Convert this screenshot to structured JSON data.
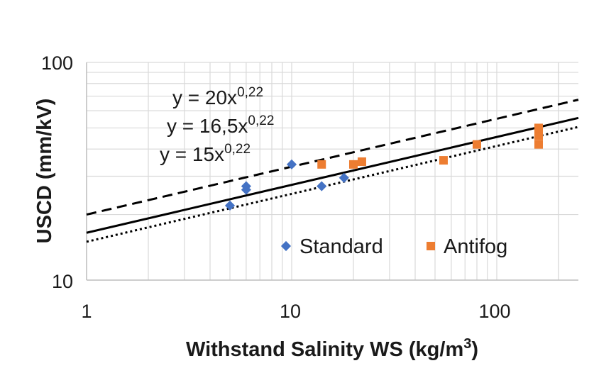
{
  "chart_data": {
    "type": "scatter",
    "xlabel": "Withstand Salinity WS (kg/m",
    "xlabel_sup": "3",
    "xlabel_end": ")",
    "ylabel": "USCD (mm/kV)",
    "xscale": "log",
    "yscale": "log",
    "xlim": [
      1,
      250
    ],
    "ylim": [
      10,
      100
    ],
    "x_ticks": [
      "1",
      "10",
      "100"
    ],
    "y_ticks": [
      "100",
      "10"
    ],
    "grid": true,
    "legend_placement": "bottom-right",
    "colors": {
      "standard": "#4472c4",
      "antifog": "#ed7d31",
      "line": "#000000",
      "grid": "#d9d9d9"
    },
    "series": [
      {
        "name": "Standard",
        "marker": "diamond",
        "x": [
          5,
          6,
          6,
          10,
          14,
          18
        ],
        "y": [
          22,
          26,
          27,
          34,
          27,
          29.5
        ]
      },
      {
        "name": "Antifog",
        "marker": "square",
        "x": [
          14,
          20,
          22,
          55,
          80,
          160,
          160,
          160
        ],
        "y": [
          34,
          34,
          35,
          35.5,
          42,
          42,
          46,
          50
        ]
      }
    ],
    "fit_lines": [
      {
        "equation": "y = 20x",
        "exponent": "0,22",
        "coef": 20,
        "power": 0.22,
        "style": "dashed"
      },
      {
        "equation": "y = 16,5x",
        "exponent": "0,22",
        "coef": 16.5,
        "power": 0.22,
        "style": "solid"
      },
      {
        "equation": "y = 15x",
        "exponent": "0,22",
        "coef": 15,
        "power": 0.22,
        "style": "dotted"
      }
    ]
  }
}
